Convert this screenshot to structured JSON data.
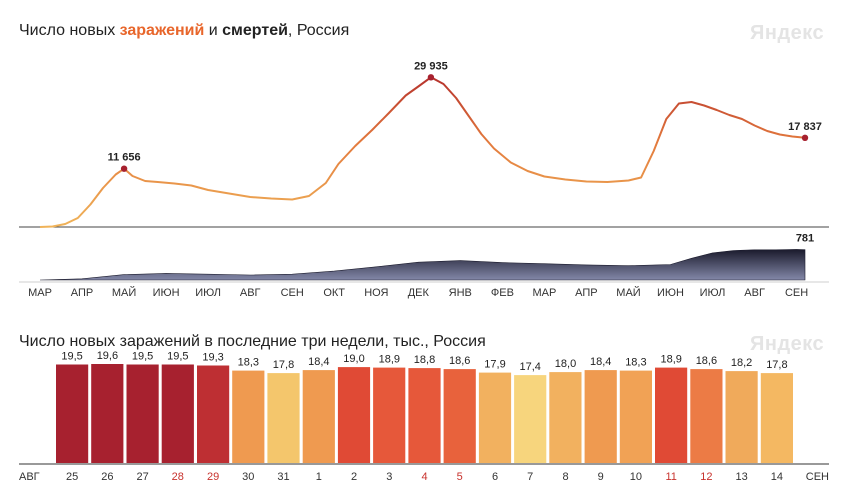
{
  "chart1": {
    "title_prefix": "Число новых ",
    "title_cases": "заражений",
    "title_mid": " и ",
    "title_deaths": "смертей",
    "title_suffix": ", Россия",
    "brand": "Яндекс",
    "months": [
      "МАР",
      "АПР",
      "МАЙ",
      "ИЮН",
      "ИЮЛ",
      "АВГ",
      "СЕН",
      "ОКТ",
      "НОЯ",
      "ДЕК",
      "ЯНВ",
      "ФЕВ",
      "МАР",
      "АПР",
      "МАЙ",
      "ИЮН",
      "ИЮЛ",
      "АВГ",
      "СЕН"
    ],
    "peak_labels": [
      "11 656",
      "29 935",
      "17 837"
    ],
    "deaths_label": "781",
    "colors": {
      "low": "#f0b55a",
      "mid": "#e37a3d",
      "high": "#b12a2a",
      "deaths_top": "#1c1c2e",
      "deaths_low": "#8a8fb0"
    }
  },
  "chart2": {
    "title": "Число новых заражений в последние три недели, тыс., Россия",
    "brand": "Яндекс",
    "month_start": "АВГ",
    "month_end": "СЕН"
  },
  "chart_data": [
    {
      "type": "area",
      "title": "Число новых заражений и смертей, Россия",
      "x_unit": "month",
      "series": [
        {
          "name": "заражений",
          "x": [
            0,
            0.3,
            0.6,
            0.9,
            1.2,
            1.5,
            1.8,
            2.0,
            2.2,
            2.5,
            2.8,
            3.2,
            3.6,
            4.0,
            4.5,
            5.0,
            5.5,
            6.0,
            6.4,
            6.8,
            7.1,
            7.5,
            7.9,
            8.3,
            8.7,
            9.0,
            9.3,
            9.6,
            9.9,
            10.2,
            10.5,
            10.8,
            11.2,
            11.6,
            12.0,
            12.5,
            13.0,
            13.5,
            14.0,
            14.3,
            14.6,
            14.9,
            15.2,
            15.5,
            15.8,
            16.1,
            16.4,
            16.7,
            17.0,
            17.3,
            17.6,
            17.9,
            18.2
          ],
          "values": [
            0,
            100,
            600,
            1800,
            4500,
            7800,
            10500,
            11656,
            10200,
            9200,
            9000,
            8700,
            8300,
            7400,
            6700,
            6000,
            5700,
            5500,
            6200,
            8800,
            12600,
            16200,
            19400,
            22800,
            26300,
            28100,
            29935,
            28600,
            25800,
            22200,
            18600,
            15700,
            12900,
            11200,
            10100,
            9500,
            9100,
            9000,
            9300,
            9900,
            15200,
            21600,
            24700,
            25000,
            24300,
            23400,
            22400,
            21600,
            20300,
            19200,
            18500,
            18100,
            17837
          ]
        },
        {
          "name": "смертей",
          "x": [
            0,
            1.0,
            2.0,
            3.0,
            4.0,
            5.0,
            6.0,
            7.0,
            8.0,
            9.0,
            10.0,
            11.0,
            12.0,
            13.0,
            14.0,
            15.0,
            15.5,
            16.0,
            16.5,
            17.0,
            17.5,
            18.0,
            18.2
          ],
          "values": [
            0,
            30,
            140,
            170,
            150,
            130,
            150,
            230,
            340,
            460,
            500,
            450,
            420,
            390,
            370,
            400,
            560,
            700,
            760,
            780,
            780,
            790,
            781
          ]
        }
      ],
      "annotations": [
        {
          "x": 2.0,
          "y": 11656,
          "label": "11 656"
        },
        {
          "x": 9.3,
          "y": 29935,
          "label": "29 935"
        },
        {
          "x": 18.2,
          "y": 17837,
          "label": "17 837"
        },
        {
          "x": 18.2,
          "y": 781,
          "label": "781"
        }
      ],
      "ylim_cases": [
        0,
        32000
      ],
      "ylim_deaths": [
        0,
        800
      ],
      "grid": false
    },
    {
      "type": "bar",
      "title": "Число новых заражений в последние три недели, тыс., Россия",
      "categories": [
        "25",
        "26",
        "27",
        "28",
        "29",
        "30",
        "31",
        "1",
        "2",
        "3",
        "4",
        "5",
        "6",
        "7",
        "8",
        "9",
        "10",
        "11",
        "12",
        "13",
        "14"
      ],
      "values": [
        19.5,
        19.6,
        19.5,
        19.5,
        19.3,
        18.3,
        17.8,
        18.4,
        19.0,
        18.9,
        18.8,
        18.6,
        17.9,
        17.4,
        18.0,
        18.4,
        18.3,
        18.9,
        18.6,
        18.2,
        17.8
      ],
      "value_labels": [
        "19,5",
        "19,6",
        "19,5",
        "19,5",
        "19,3",
        "18,3",
        "17,8",
        "18,4",
        "19,0",
        "18,9",
        "18,8",
        "18,6",
        "17,9",
        "17,4",
        "18,0",
        "18,4",
        "18,3",
        "18,9",
        "18,6",
        "18,2",
        "17,8"
      ],
      "bar_colors": [
        "#a7212f",
        "#a7212f",
        "#a7212f",
        "#a7212f",
        "#be2f33",
        "#ef9a50",
        "#f4c66c",
        "#ef9a50",
        "#e04a35",
        "#e6583a",
        "#e6583a",
        "#e8623c",
        "#f2b15f",
        "#f7d57d",
        "#f2b15f",
        "#ef9a50",
        "#f1a255",
        "#e04a35",
        "#ec7b45",
        "#f0aa5b",
        "#f4b862"
      ],
      "weekend_categories": [
        "28",
        "29",
        "4",
        "5",
        "11",
        "12"
      ],
      "ylim": [
        0,
        20
      ]
    }
  ]
}
